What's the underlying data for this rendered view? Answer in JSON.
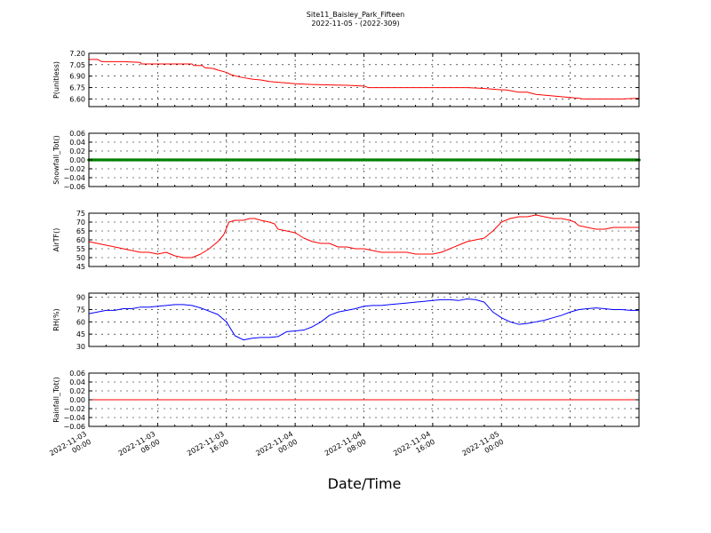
{
  "figure": {
    "title_line1": "Site11_Baisley_Park_Fifteen",
    "title_line2": "2022-11-05 - (2022-309)",
    "xlabel": "Date/Time"
  },
  "chart_data": [
    {
      "type": "line",
      "ylabel": "P(unitless)",
      "ylim": [
        6.5,
        7.2
      ],
      "yticks": [
        6.6,
        6.75,
        6.9,
        7.05,
        7.2
      ],
      "ytick_labels": [
        "6.60",
        "6.75",
        "6.90",
        "7.05",
        "7.20"
      ],
      "color": "#ff0000",
      "grid": true,
      "series": [
        {
          "points": [
            [
              0,
              7.12
            ],
            [
              1,
              7.12
            ],
            [
              1.5,
              7.09
            ],
            [
              4,
              7.09
            ],
            [
              6,
              7.08
            ],
            [
              6.1,
              7.06
            ],
            [
              12,
              7.06
            ],
            [
              12.2,
              7.04
            ],
            [
              13.2,
              7.04
            ],
            [
              13.5,
              7.01
            ],
            [
              14.5,
              7.0
            ],
            [
              15,
              6.98
            ],
            [
              16,
              6.95
            ],
            [
              16.5,
              6.92
            ],
            [
              17.5,
              6.89
            ],
            [
              18,
              6.88
            ],
            [
              19,
              6.86
            ],
            [
              20,
              6.85
            ],
            [
              21,
              6.83
            ],
            [
              22,
              6.82
            ],
            [
              23,
              6.81
            ],
            [
              24,
              6.8
            ],
            [
              26,
              6.79
            ],
            [
              30,
              6.78
            ],
            [
              32,
              6.77
            ],
            [
              32.5,
              6.75
            ],
            [
              36,
              6.75
            ],
            [
              40,
              6.75
            ],
            [
              44,
              6.75
            ],
            [
              45.7,
              6.74
            ],
            [
              48,
              6.72
            ],
            [
              48.5,
              6.72
            ],
            [
              50,
              6.69
            ],
            [
              51,
              6.69
            ],
            [
              52,
              6.66
            ],
            [
              53,
              6.65
            ],
            [
              54,
              6.64
            ],
            [
              55,
              6.63
            ],
            [
              56,
              6.62
            ],
            [
              57,
              6.61
            ],
            [
              57.5,
              6.6
            ],
            [
              60,
              6.6
            ],
            [
              62,
              6.6
            ],
            [
              64,
              6.61
            ]
          ]
        }
      ]
    },
    {
      "type": "scatter",
      "ylabel": "Snowfall_Tot()",
      "ylim": [
        -0.06,
        0.06
      ],
      "yticks": [
        -0.06,
        -0.04,
        -0.02,
        0.0,
        0.02,
        0.04,
        0.06
      ],
      "ytick_labels": [
        "−0.06",
        "−0.04",
        "−0.02",
        "0.00",
        "0.02",
        "0.04",
        "0.06"
      ],
      "color": "#008000",
      "grid": true,
      "series": [
        {
          "points": [
            [
              0,
              0
            ],
            [
              64,
              0
            ]
          ],
          "marker_interval_hours": 0.25
        }
      ]
    },
    {
      "type": "line",
      "ylabel": "AirTF()",
      "ylim": [
        45,
        75
      ],
      "yticks": [
        45,
        50,
        55,
        60,
        65,
        70,
        75
      ],
      "ytick_labels": [
        "45",
        "50",
        "55",
        "60",
        "65",
        "70",
        "75"
      ],
      "color": "#ff0000",
      "grid": true,
      "series": [
        {
          "points": [
            [
              0,
              59
            ],
            [
              1,
              58
            ],
            [
              2,
              57
            ],
            [
              3,
              56
            ],
            [
              4,
              55
            ],
            [
              5,
              54
            ],
            [
              6,
              53
            ],
            [
              7,
              53
            ],
            [
              8,
              52
            ],
            [
              9,
              53
            ],
            [
              10,
              51
            ],
            [
              11,
              50
            ],
            [
              12,
              50
            ],
            [
              13,
              52
            ],
            [
              14,
              55
            ],
            [
              15,
              59
            ],
            [
              15.7,
              63
            ],
            [
              16.3,
              70
            ],
            [
              17,
              71
            ],
            [
              18,
              71
            ],
            [
              18.7,
              72
            ],
            [
              19.3,
              72
            ],
            [
              20,
              71
            ],
            [
              21,
              70
            ],
            [
              21.6,
              69
            ],
            [
              22,
              66
            ],
            [
              23,
              65
            ],
            [
              24,
              64
            ],
            [
              25,
              61
            ],
            [
              26,
              59
            ],
            [
              27,
              58
            ],
            [
              28,
              58
            ],
            [
              29,
              56
            ],
            [
              30,
              56
            ],
            [
              31,
              55
            ],
            [
              32,
              55
            ],
            [
              33,
              54
            ],
            [
              34,
              53
            ],
            [
              35,
              53
            ],
            [
              36,
              53
            ],
            [
              37,
              53
            ],
            [
              38,
              52
            ],
            [
              39,
              52
            ],
            [
              40,
              52
            ],
            [
              41,
              53
            ],
            [
              42,
              55
            ],
            [
              43,
              57
            ],
            [
              44,
              59
            ],
            [
              45,
              60
            ],
            [
              46,
              61
            ],
            [
              47,
              65
            ],
            [
              48,
              70
            ],
            [
              49,
              72
            ],
            [
              50,
              73
            ],
            [
              51,
              73
            ],
            [
              52,
              74
            ],
            [
              53,
              73
            ],
            [
              54,
              72
            ],
            [
              55,
              72
            ],
            [
              56,
              71
            ],
            [
              56.5,
              70
            ],
            [
              57,
              68
            ],
            [
              58,
              67
            ],
            [
              59,
              66
            ],
            [
              60,
              66
            ],
            [
              61,
              67
            ],
            [
              62,
              67
            ],
            [
              63,
              67
            ],
            [
              64,
              67
            ]
          ]
        }
      ]
    },
    {
      "type": "line",
      "ylabel": "RH(%)",
      "ylim": [
        30,
        95
      ],
      "yticks": [
        30,
        45,
        60,
        75,
        90
      ],
      "ytick_labels": [
        "30",
        "45",
        "60",
        "75",
        "90"
      ],
      "color": "#0000ff",
      "grid": true,
      "series": [
        {
          "points": [
            [
              0,
              70
            ],
            [
              1,
              72
            ],
            [
              2,
              74
            ],
            [
              3,
              74
            ],
            [
              4,
              76
            ],
            [
              5,
              76
            ],
            [
              6,
              78
            ],
            [
              7,
              78
            ],
            [
              8,
              79
            ],
            [
              9,
              80
            ],
            [
              10,
              81
            ],
            [
              11,
              81
            ],
            [
              12,
              80
            ],
            [
              13,
              77
            ],
            [
              14,
              73
            ],
            [
              15,
              69
            ],
            [
              16,
              60
            ],
            [
              17,
              43
            ],
            [
              18,
              38
            ],
            [
              19,
              40
            ],
            [
              20,
              41
            ],
            [
              21,
              41
            ],
            [
              22,
              42
            ],
            [
              23,
              48
            ],
            [
              24,
              49
            ],
            [
              25,
              50
            ],
            [
              26,
              54
            ],
            [
              27,
              60
            ],
            [
              28,
              68
            ],
            [
              29,
              72
            ],
            [
              30,
              74
            ],
            [
              31,
              76
            ],
            [
              32,
              79
            ],
            [
              33,
              80
            ],
            [
              34,
              80
            ],
            [
              35,
              81
            ],
            [
              36,
              82
            ],
            [
              37,
              83
            ],
            [
              38,
              84
            ],
            [
              39,
              85
            ],
            [
              40,
              86
            ],
            [
              41,
              87
            ],
            [
              42,
              87
            ],
            [
              43,
              86
            ],
            [
              44,
              88
            ],
            [
              45,
              87
            ],
            [
              46,
              84
            ],
            [
              47,
              72
            ],
            [
              48,
              65
            ],
            [
              49,
              60
            ],
            [
              50,
              57
            ],
            [
              51,
              58
            ],
            [
              52,
              60
            ],
            [
              53,
              62
            ],
            [
              54,
              65
            ],
            [
              55,
              68
            ],
            [
              56,
              72
            ],
            [
              57,
              75
            ],
            [
              58,
              76
            ],
            [
              59,
              77
            ],
            [
              60,
              76
            ],
            [
              61,
              75
            ],
            [
              62,
              75
            ],
            [
              63,
              74
            ],
            [
              64,
              74
            ]
          ]
        }
      ]
    },
    {
      "type": "line",
      "ylabel": "Rainfall_Tot()",
      "ylim": [
        -0.06,
        0.06
      ],
      "yticks": [
        -0.06,
        -0.04,
        -0.02,
        0.0,
        0.02,
        0.04,
        0.06
      ],
      "ytick_labels": [
        "−0.06",
        "−0.04",
        "−0.02",
        "0.00",
        "0.02",
        "0.04",
        "0.06"
      ],
      "color": "#ff0000",
      "grid": true,
      "series": [
        {
          "points": [
            [
              0,
              0
            ],
            [
              64,
              0
            ]
          ]
        }
      ]
    }
  ],
  "x_axis": {
    "type": "datetime",
    "xlim": [
      "2022-11-03 00:00",
      "2022-11-05 16:00"
    ],
    "xtick_labels": [
      [
        "2022-11-03",
        "00:00"
      ],
      [
        "2022-11-03",
        "08:00"
      ],
      [
        "2022-11-03",
        "16:00"
      ],
      [
        "2022-11-04",
        "00:00"
      ],
      [
        "2022-11-04",
        "08:00"
      ],
      [
        "2022-11-04",
        "16:00"
      ],
      [
        "2022-11-05",
        "00:00"
      ]
    ]
  }
}
